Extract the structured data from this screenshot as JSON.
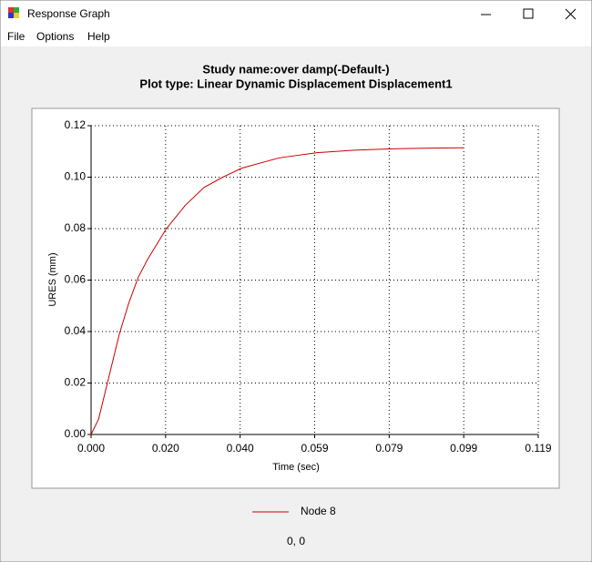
{
  "window": {
    "title": "Response Graph",
    "menu": [
      "File",
      "Options",
      "Help"
    ],
    "status": "0, 0"
  },
  "chart_data": {
    "type": "line",
    "title": "Study name:over damp(-Default-)",
    "subtitle": "Plot type: Linear Dynamic Displacement Displacement1",
    "x_label": "Time (sec)",
    "y_label": "URES (mm)",
    "x": [
      0,
      0.002,
      0.005,
      0.0075,
      0.01,
      0.0125,
      0.015,
      0.02,
      0.025,
      0.03,
      0.035,
      0.04,
      0.05,
      0.06,
      0.07,
      0.08,
      0.09,
      0.099
    ],
    "series": [
      {
        "name": "Node 8",
        "color": "#cc0000",
        "values": [
          0,
          0.006,
          0.024,
          0.039,
          0.051,
          0.061,
          0.068,
          0.08,
          0.089,
          0.096,
          0.1,
          0.1035,
          0.1075,
          0.1095,
          0.1105,
          0.111,
          0.1113,
          0.1114
        ]
      }
    ],
    "xlim": [
      0,
      0.1188
    ],
    "xticks": [
      {
        "value": 0,
        "label": "0.000"
      },
      {
        "value": 0.0198,
        "label": "0.020"
      },
      {
        "value": 0.0396,
        "label": "0.040"
      },
      {
        "value": 0.0594,
        "label": "0.059"
      },
      {
        "value": 0.0792,
        "label": "0.079"
      },
      {
        "value": 0.099,
        "label": "0.099"
      },
      {
        "value": 0.1188,
        "label": "0.119"
      }
    ],
    "ylim": [
      0,
      0.12
    ],
    "yticks": [
      {
        "value": 0,
        "label": "0.00"
      },
      {
        "value": 0.02,
        "label": "0.02"
      },
      {
        "value": 0.04,
        "label": "0.04"
      },
      {
        "value": 0.06,
        "label": "0.06"
      },
      {
        "value": 0.08,
        "label": "0.08"
      },
      {
        "value": 0.1,
        "label": "0.10"
      },
      {
        "value": 0.12,
        "label": "0.12"
      }
    ],
    "grid": true
  }
}
